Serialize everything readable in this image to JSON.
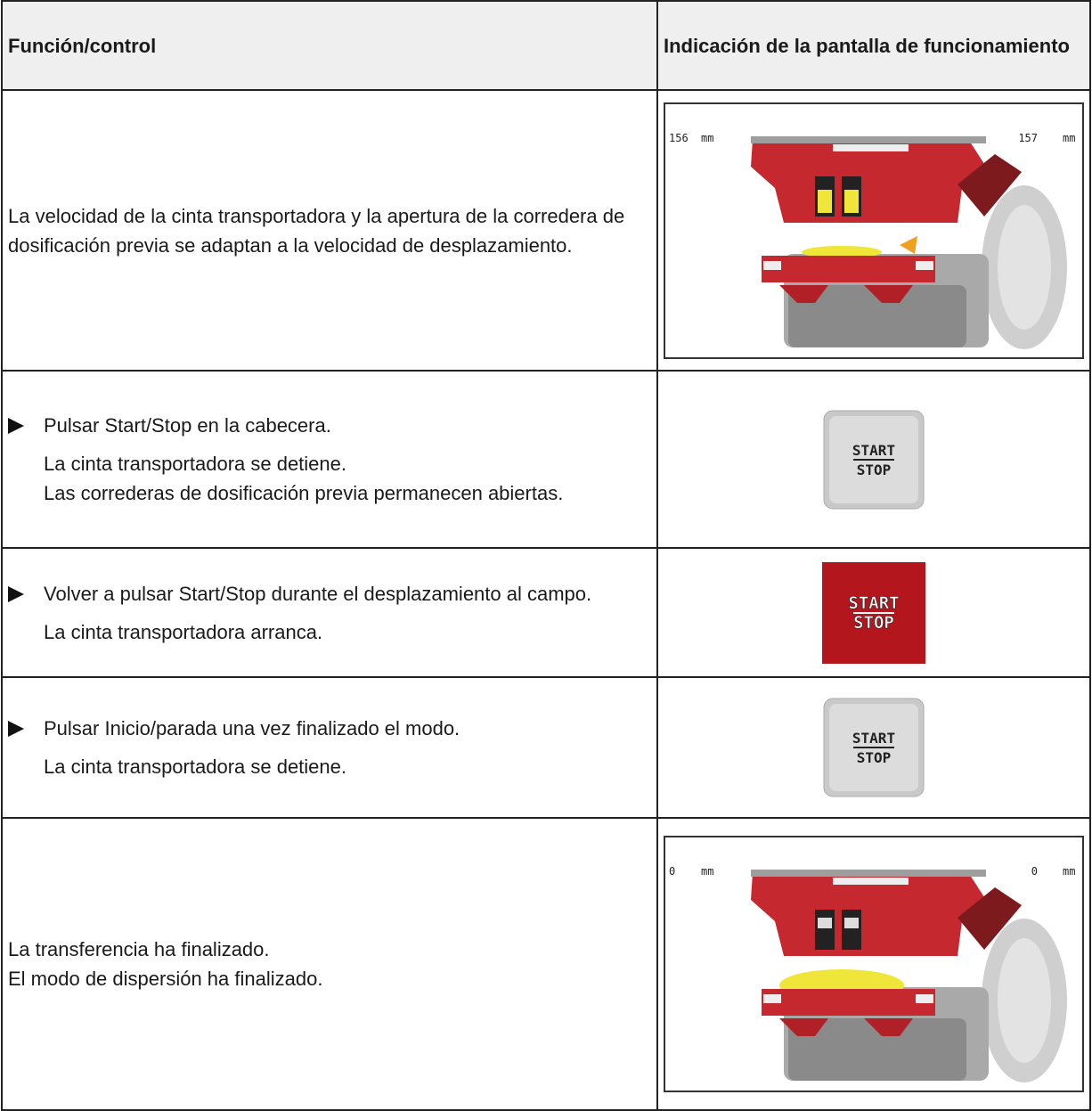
{
  "table": {
    "header": [
      "Función/control",
      "Indicación de la pantalla de funcionamiento"
    ],
    "rows": [
      {
        "function": [
          "La velocidad de la cinta transportadora y la apertura de la corredera de dosificación previa se adaptan a la velocidad de desplazamiento."
        ],
        "display": {
          "left": [
            "156",
            "mm"
          ],
          "right": [
            "157",
            "mm"
          ]
        }
      },
      {
        "step": "Pulsar Start/Stop en la cabecera.",
        "results": [
          "La cinta transportadora se detiene.",
          "Las correderas de dosificación previa permanecen abiertas."
        ],
        "button": [
          "START",
          "STOP"
        ]
      },
      {
        "step": "Volver a pulsar Start/Stop durante el desplazamiento al campo.",
        "results": [
          "La cinta transportadora arranca."
        ],
        "button": [
          "START",
          "STOP"
        ]
      },
      {
        "step": "Pulsar Inicio/parada una vez finalizado el modo.",
        "results": [
          "La cinta transportadora se detiene."
        ],
        "button": [
          "START",
          "STOP"
        ]
      },
      {
        "function": [
          "La transferencia ha finalizado.",
          "El modo de dispersión ha finalizado."
        ],
        "display": {
          "left": [
            "0",
            "mm"
          ],
          "right": [
            "0",
            "mm"
          ]
        }
      }
    ]
  }
}
